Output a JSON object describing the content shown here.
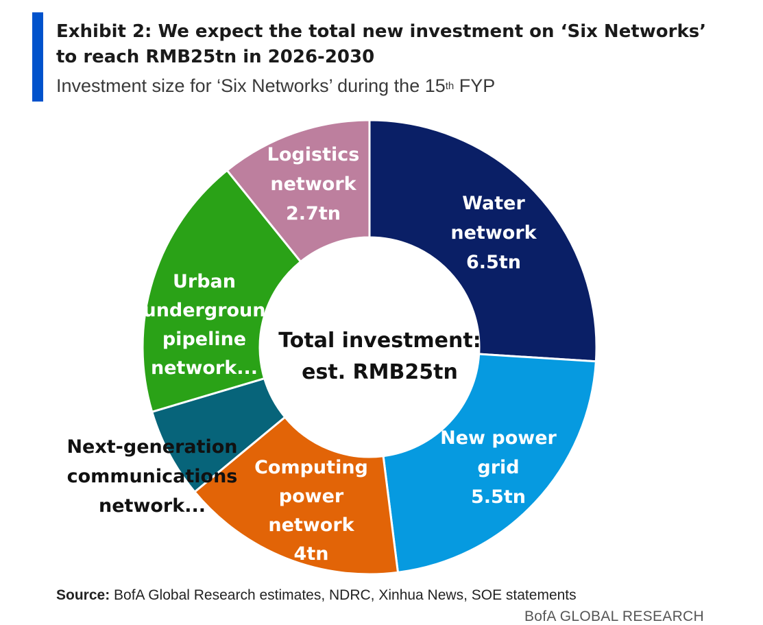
{
  "header": {
    "title": "Exhibit 2: We expect the total new investment on ‘Six Networks’ to reach RMB25tn in 2026-2030",
    "subtitle_main": "Investment size for ‘Six Networks’ during the 15",
    "subtitle_sup": "th",
    "subtitle_end": " FYP"
  },
  "chart_data": {
    "type": "pie",
    "variant": "donut",
    "title": "Total investment: est. RMB25tn",
    "center_label": [
      "Total investment:",
      "est. RMB25tn"
    ],
    "unit": "RMB tn",
    "slices": [
      {
        "name": "Water network",
        "value": 6.5,
        "label_lines": [
          "Water",
          "network",
          "6.5tn"
        ],
        "color": "#0A1F66",
        "text_color": "#FFFFFF"
      },
      {
        "name": "New power grid",
        "value": 5.5,
        "label_lines": [
          "New power",
          "grid",
          "5.5tn"
        ],
        "color": "#069AE0",
        "text_color": "#FFFFFF"
      },
      {
        "name": "Computing power network",
        "value": 4,
        "label_lines": [
          "Computing",
          "power",
          "network",
          "4tn"
        ],
        "color": "#E26407",
        "text_color": "#FFFFFF"
      },
      {
        "name": "Next-generation communications network...",
        "value": 1.6,
        "label_lines": [
          "Next-generation",
          "communications",
          "network..."
        ],
        "color": "#07647A",
        "text_color": "#111111"
      },
      {
        "name": "Urban underground pipeline network...",
        "value": 4.7,
        "label_lines": [
          "Urban",
          "undergroun",
          "pipeline",
          "network..."
        ],
        "color": "#2AA217",
        "text_color": "#FFFFFF"
      },
      {
        "name": "Logistics network",
        "value": 2.7,
        "label_lines": [
          "Logistics",
          "network",
          "2.7tn"
        ],
        "color": "#BD7F9E",
        "text_color": "#FFFFFF"
      }
    ],
    "start_angle_deg": 0,
    "legend": "none"
  },
  "footer": {
    "source_label": "Source:",
    "source_text": " BofA Global Research estimates, NDRC, Xinhua News, SOE statements",
    "brand": "BofA GLOBAL RESEARCH"
  }
}
